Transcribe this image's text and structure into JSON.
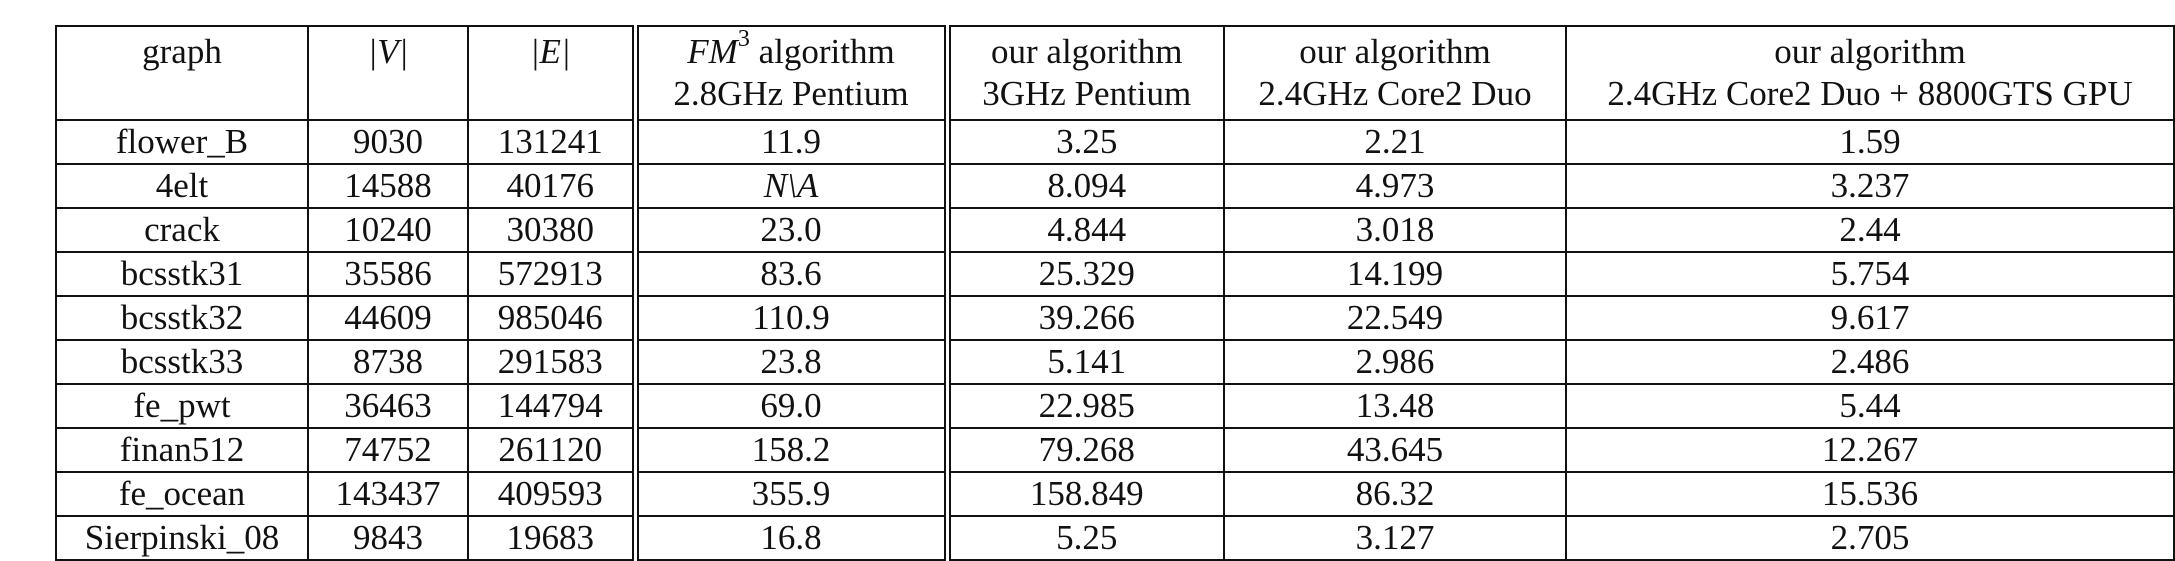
{
  "table": {
    "headers": [
      {
        "line1": "graph",
        "line2": ""
      },
      {
        "line1": "|V|",
        "line2": ""
      },
      {
        "line1": "|E|",
        "line2": ""
      },
      {
        "line1_math": "FM",
        "line1_sup": "3",
        "line1_rest": " algorithm",
        "line2": "2.8GHz Pentium"
      },
      {
        "line1": "our algorithm",
        "line2": "3GHz Pentium"
      },
      {
        "line1": "our algorithm",
        "line2": "2.4GHz Core2 Duo"
      },
      {
        "line1": "our algorithm",
        "line2": "2.4GHz Core2 Duo + 8800GTS GPU"
      }
    ],
    "rows": [
      [
        "flower_B",
        "9030",
        "131241",
        "11.9",
        "3.25",
        "2.21",
        "1.59"
      ],
      [
        "4elt",
        "14588",
        "40176",
        "N\\A",
        "8.094",
        "4.973",
        "3.237"
      ],
      [
        "crack",
        "10240",
        "30380",
        "23.0",
        "4.844",
        "3.018",
        "2.44"
      ],
      [
        "bcsstk31",
        "35586",
        "572913",
        "83.6",
        "25.329",
        "14.199",
        "5.754"
      ],
      [
        "bcsstk32",
        "44609",
        "985046",
        "110.9",
        "39.266",
        "22.549",
        "9.617"
      ],
      [
        "bcsstk33",
        "8738",
        "291583",
        "23.8",
        "5.141",
        "2.986",
        "2.486"
      ],
      [
        "fe_pwt",
        "36463",
        "144794",
        "69.0",
        "22.985",
        "13.48",
        "5.44"
      ],
      [
        "finan512",
        "74752",
        "261120",
        "158.2",
        "79.268",
        "43.645",
        "12.267"
      ],
      [
        "fe_ocean",
        "143437",
        "409593",
        "355.9",
        "158.849",
        "86.32",
        "15.536"
      ],
      [
        "Sierpinski_08",
        "9843",
        "19683",
        "16.8",
        "5.25",
        "3.127",
        "2.705"
      ]
    ]
  }
}
